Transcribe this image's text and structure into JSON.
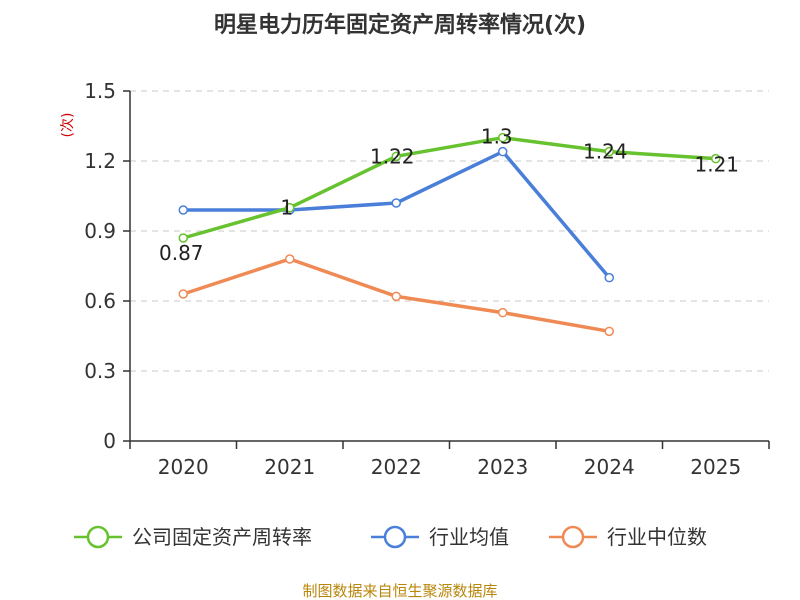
{
  "chart_data": {
    "type": "line",
    "title": "明星电力历年固定资产周转率情况(次)",
    "ylabel": "(次)",
    "xlabel": "",
    "categories": [
      "2020",
      "2021",
      "2022",
      "2023",
      "2024",
      "2025"
    ],
    "ylim": [
      0,
      1.5
    ],
    "yticks": [
      0,
      0.3,
      0.6,
      0.9,
      1.2,
      1.5
    ],
    "ytick_labels": [
      "0",
      "0.3",
      "0.6",
      "0.9",
      "1.2",
      "1.5"
    ],
    "grid": true,
    "legend_position": "bottom",
    "series": [
      {
        "name": "公司固定资产周转率",
        "color": "#66c22e",
        "values": [
          0.87,
          1.0,
          1.22,
          1.3,
          1.24,
          1.21
        ],
        "labels": [
          "0.87",
          "1",
          "1.22",
          "1.3",
          "1.24",
          "1.21"
        ]
      },
      {
        "name": "行业均值",
        "color": "#4a7fd9",
        "values": [
          0.99,
          0.99,
          1.02,
          1.24,
          0.7,
          null
        ]
      },
      {
        "name": "行业中位数",
        "color": "#f08a55",
        "values": [
          0.63,
          0.78,
          0.62,
          0.55,
          0.47,
          null
        ]
      }
    ]
  },
  "footer": {
    "source": "制图数据来自恒生聚源数据库"
  }
}
